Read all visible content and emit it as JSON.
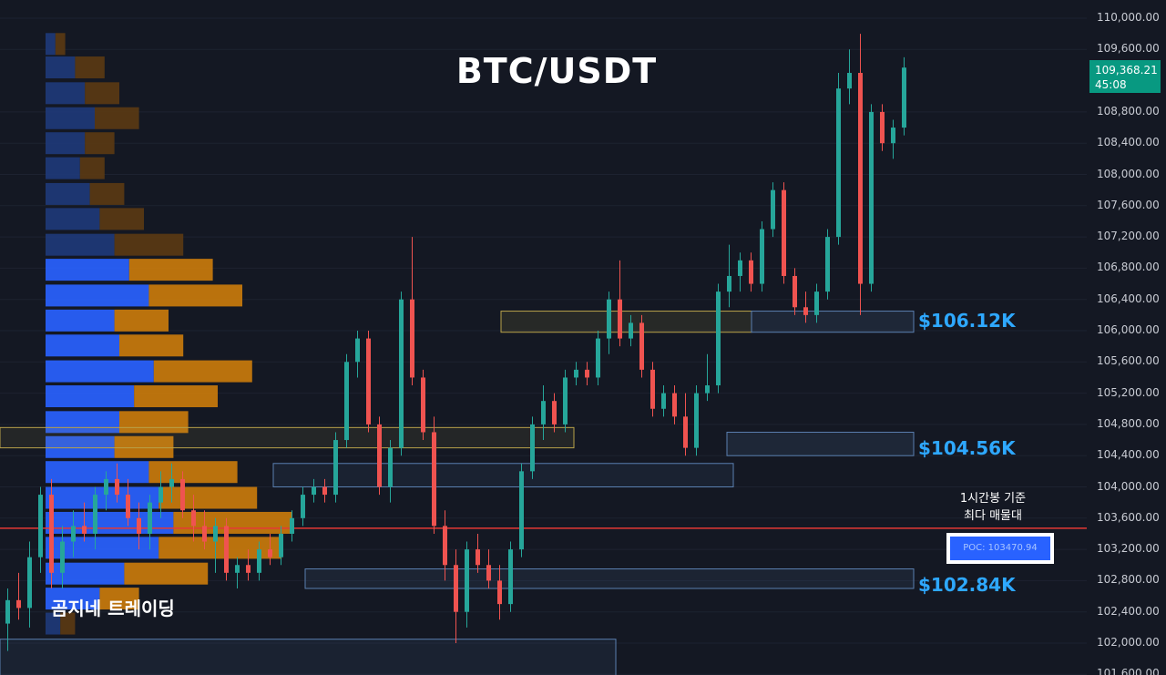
{
  "title": "BTC/USDT",
  "watermark": "곰지네 트레이딩",
  "levels": {
    "l1": "$106.12K",
    "l2": "$104.56K",
    "l3": "$102.84K"
  },
  "poc_note_line1": "1시간봉 기준",
  "poc_note_line2": "최다 매물대",
  "poc_label": "POC: 103470.94",
  "current_price": "109,368.21",
  "countdown": "45:08",
  "colors": {
    "background": "#141823",
    "up": "#26a69a",
    "down": "#ef5350",
    "vp_buy": "#2962ff",
    "vp_sell": "#e8900c",
    "poc_line": "#e53935",
    "level_text": "#2ea8ff"
  },
  "chart_data": {
    "type": "candlestick",
    "title": "BTC/USDT",
    "symbol": "BTC/USDT",
    "yaxis": {
      "ticks": [
        "110,000.00",
        "109,600.00",
        "108,800.00",
        "108,400.00",
        "108,000.00",
        "107,600.00",
        "107,200.00",
        "106,800.00",
        "106,400.00",
        "106,000.00",
        "105,600.00",
        "105,200.00",
        "104,800.00",
        "104,400.00",
        "104,000.00",
        "103,600.00",
        "103,200.00",
        "102,800.00",
        "102,400.00",
        "102,000.00",
        "101,600.00"
      ],
      "ylim": [
        101560,
        110080
      ]
    },
    "poc": 103470.94,
    "current_price": 109368.21,
    "levels": [
      106120,
      104560,
      102840
    ],
    "volume_profile": [
      {
        "price": 109670,
        "buy": 2,
        "sell": 2
      },
      {
        "price": 109370,
        "buy": 6,
        "sell": 6
      },
      {
        "price": 109040,
        "buy": 8,
        "sell": 7
      },
      {
        "price": 108720,
        "buy": 10,
        "sell": 9
      },
      {
        "price": 108400,
        "buy": 8,
        "sell": 6
      },
      {
        "price": 108080,
        "buy": 7,
        "sell": 5
      },
      {
        "price": 107750,
        "buy": 9,
        "sell": 7
      },
      {
        "price": 107430,
        "buy": 11,
        "sell": 9
      },
      {
        "price": 107100,
        "buy": 14,
        "sell": 14
      },
      {
        "price": 106780,
        "buy": 17,
        "sell": 17
      },
      {
        "price": 106450,
        "buy": 21,
        "sell": 19
      },
      {
        "price": 106130,
        "buy": 14,
        "sell": 11
      },
      {
        "price": 105810,
        "buy": 15,
        "sell": 13
      },
      {
        "price": 105480,
        "buy": 22,
        "sell": 20
      },
      {
        "price": 105160,
        "buy": 18,
        "sell": 17
      },
      {
        "price": 104830,
        "buy": 15,
        "sell": 14
      },
      {
        "price": 104510,
        "buy": 14,
        "sell": 12
      },
      {
        "price": 104190,
        "buy": 21,
        "sell": 18
      },
      {
        "price": 103860,
        "buy": 23,
        "sell": 20
      },
      {
        "price": 103540,
        "buy": 26,
        "sell": 24
      },
      {
        "price": 103220,
        "buy": 23,
        "sell": 25
      },
      {
        "price": 102890,
        "buy": 16,
        "sell": 17
      },
      {
        "price": 102570,
        "buy": 11,
        "sell": 8
      },
      {
        "price": 102250,
        "buy": 3,
        "sell": 3
      }
    ],
    "candles": [
      {
        "o": 102250,
        "h": 102700,
        "l": 101900,
        "c": 102550
      },
      {
        "o": 102550,
        "h": 102900,
        "l": 102300,
        "c": 102450
      },
      {
        "o": 102450,
        "h": 103300,
        "l": 102200,
        "c": 103100
      },
      {
        "o": 103100,
        "h": 104000,
        "l": 102900,
        "c": 103900
      },
      {
        "o": 103900,
        "h": 104100,
        "l": 102700,
        "c": 102900
      },
      {
        "o": 102900,
        "h": 103500,
        "l": 102700,
        "c": 103300
      },
      {
        "o": 103300,
        "h": 103700,
        "l": 103100,
        "c": 103500
      },
      {
        "o": 103500,
        "h": 103800,
        "l": 103300,
        "c": 103400
      },
      {
        "o": 103400,
        "h": 104000,
        "l": 103200,
        "c": 103900
      },
      {
        "o": 103900,
        "h": 104200,
        "l": 103700,
        "c": 104100
      },
      {
        "o": 104100,
        "h": 104300,
        "l": 103800,
        "c": 103900
      },
      {
        "o": 103900,
        "h": 104100,
        "l": 103500,
        "c": 103600
      },
      {
        "o": 103600,
        "h": 103800,
        "l": 103200,
        "c": 103400
      },
      {
        "o": 103400,
        "h": 103900,
        "l": 103200,
        "c": 103800
      },
      {
        "o": 103800,
        "h": 104200,
        "l": 103600,
        "c": 104000
      },
      {
        "o": 104000,
        "h": 104300,
        "l": 103800,
        "c": 104100
      },
      {
        "o": 104100,
        "h": 104200,
        "l": 103600,
        "c": 103700
      },
      {
        "o": 103700,
        "h": 103900,
        "l": 103300,
        "c": 103500
      },
      {
        "o": 103500,
        "h": 103700,
        "l": 103200,
        "c": 103300
      },
      {
        "o": 103300,
        "h": 103600,
        "l": 102900,
        "c": 103500
      },
      {
        "o": 103500,
        "h": 103600,
        "l": 102800,
        "c": 102900
      },
      {
        "o": 102900,
        "h": 103100,
        "l": 102700,
        "c": 103000
      },
      {
        "o": 103000,
        "h": 103200,
        "l": 102800,
        "c": 102900
      },
      {
        "o": 102900,
        "h": 103300,
        "l": 102800,
        "c": 103200
      },
      {
        "o": 103200,
        "h": 103400,
        "l": 103000,
        "c": 103100
      },
      {
        "o": 103100,
        "h": 103500,
        "l": 103000,
        "c": 103400
      },
      {
        "o": 103400,
        "h": 103700,
        "l": 103300,
        "c": 103600
      },
      {
        "o": 103600,
        "h": 104000,
        "l": 103500,
        "c": 103900
      },
      {
        "o": 103900,
        "h": 104100,
        "l": 103800,
        "c": 104000
      },
      {
        "o": 104000,
        "h": 104100,
        "l": 103800,
        "c": 103900
      },
      {
        "o": 103900,
        "h": 104700,
        "l": 103800,
        "c": 104600
      },
      {
        "o": 104600,
        "h": 105700,
        "l": 104500,
        "c": 105600
      },
      {
        "o": 105600,
        "h": 106000,
        "l": 105400,
        "c": 105900
      },
      {
        "o": 105900,
        "h": 106000,
        "l": 104700,
        "c": 104800
      },
      {
        "o": 104800,
        "h": 104900,
        "l": 103900,
        "c": 104000
      },
      {
        "o": 104000,
        "h": 104600,
        "l": 103800,
        "c": 104500
      },
      {
        "o": 104500,
        "h": 106500,
        "l": 104400,
        "c": 106400
      },
      {
        "o": 106400,
        "h": 107200,
        "l": 105300,
        "c": 105400
      },
      {
        "o": 105400,
        "h": 105500,
        "l": 104600,
        "c": 104700
      },
      {
        "o": 104700,
        "h": 104900,
        "l": 103400,
        "c": 103500
      },
      {
        "o": 103500,
        "h": 103700,
        "l": 102800,
        "c": 103000
      },
      {
        "o": 103000,
        "h": 103200,
        "l": 102000,
        "c": 102400
      },
      {
        "o": 102400,
        "h": 103300,
        "l": 102200,
        "c": 103200
      },
      {
        "o": 103200,
        "h": 103400,
        "l": 102900,
        "c": 103000
      },
      {
        "o": 103000,
        "h": 103200,
        "l": 102700,
        "c": 102800
      },
      {
        "o": 102800,
        "h": 103000,
        "l": 102300,
        "c": 102500
      },
      {
        "o": 102500,
        "h": 103300,
        "l": 102400,
        "c": 103200
      },
      {
        "o": 103200,
        "h": 104300,
        "l": 103100,
        "c": 104200
      },
      {
        "o": 104200,
        "h": 104900,
        "l": 104100,
        "c": 104800
      },
      {
        "o": 104800,
        "h": 105300,
        "l": 104600,
        "c": 105100
      },
      {
        "o": 105100,
        "h": 105200,
        "l": 104700,
        "c": 104800
      },
      {
        "o": 104800,
        "h": 105500,
        "l": 104700,
        "c": 105400
      },
      {
        "o": 105400,
        "h": 105600,
        "l": 105300,
        "c": 105500
      },
      {
        "o": 105500,
        "h": 105600,
        "l": 105300,
        "c": 105400
      },
      {
        "o": 105400,
        "h": 106000,
        "l": 105300,
        "c": 105900
      },
      {
        "o": 105900,
        "h": 106500,
        "l": 105700,
        "c": 106400
      },
      {
        "o": 106400,
        "h": 106900,
        "l": 105800,
        "c": 105900
      },
      {
        "o": 105900,
        "h": 106200,
        "l": 105800,
        "c": 106100
      },
      {
        "o": 106100,
        "h": 106200,
        "l": 105400,
        "c": 105500
      },
      {
        "o": 105500,
        "h": 105600,
        "l": 104900,
        "c": 105000
      },
      {
        "o": 105000,
        "h": 105300,
        "l": 104900,
        "c": 105200
      },
      {
        "o": 105200,
        "h": 105300,
        "l": 104800,
        "c": 104900
      },
      {
        "o": 104900,
        "h": 105200,
        "l": 104400,
        "c": 104500
      },
      {
        "o": 104500,
        "h": 105300,
        "l": 104400,
        "c": 105200
      },
      {
        "o": 105200,
        "h": 105700,
        "l": 105100,
        "c": 105300
      },
      {
        "o": 105300,
        "h": 106600,
        "l": 105200,
        "c": 106500
      },
      {
        "o": 106500,
        "h": 107100,
        "l": 106300,
        "c": 106700
      },
      {
        "o": 106700,
        "h": 107000,
        "l": 106500,
        "c": 106900
      },
      {
        "o": 106900,
        "h": 107000,
        "l": 106500,
        "c": 106600
      },
      {
        "o": 106600,
        "h": 107400,
        "l": 106500,
        "c": 107300
      },
      {
        "o": 107300,
        "h": 107900,
        "l": 107200,
        "c": 107800
      },
      {
        "o": 107800,
        "h": 107900,
        "l": 106600,
        "c": 106700
      },
      {
        "o": 106700,
        "h": 106800,
        "l": 106200,
        "c": 106300
      },
      {
        "o": 106300,
        "h": 106500,
        "l": 106100,
        "c": 106200
      },
      {
        "o": 106200,
        "h": 106600,
        "l": 106100,
        "c": 106500
      },
      {
        "o": 106500,
        "h": 107300,
        "l": 106400,
        "c": 107200
      },
      {
        "o": 107200,
        "h": 109300,
        "l": 107100,
        "c": 109100
      },
      {
        "o": 109100,
        "h": 109600,
        "l": 108900,
        "c": 109300
      },
      {
        "o": 109300,
        "h": 109800,
        "l": 106200,
        "c": 106600
      },
      {
        "o": 106600,
        "h": 108900,
        "l": 106500,
        "c": 108800
      },
      {
        "o": 108800,
        "h": 108900,
        "l": 108300,
        "c": 108400
      },
      {
        "o": 108400,
        "h": 108700,
        "l": 108200,
        "c": 108600
      },
      {
        "o": 108600,
        "h": 109500,
        "l": 108500,
        "c": 109368
      }
    ]
  }
}
